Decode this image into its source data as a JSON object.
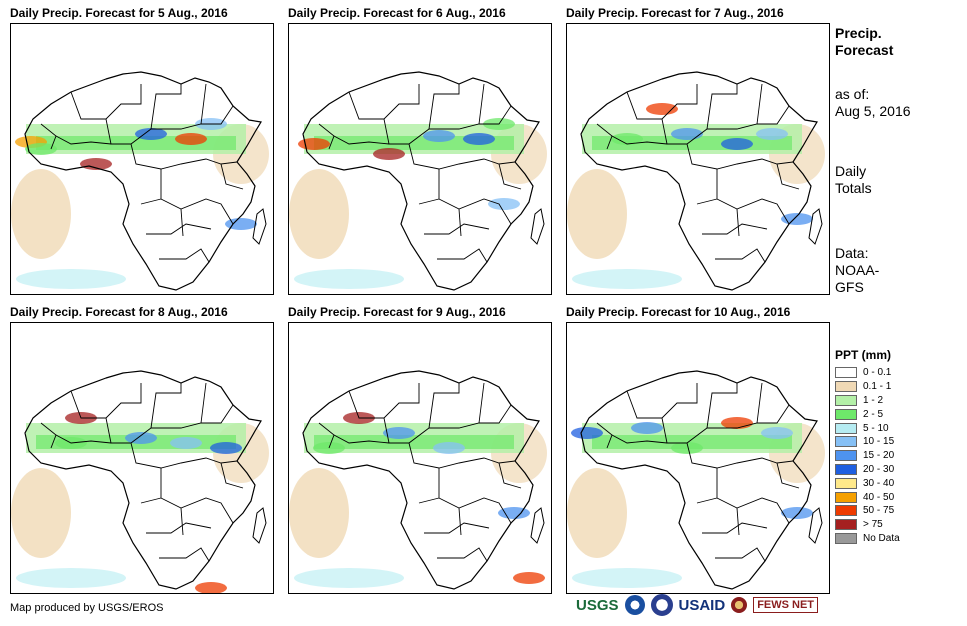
{
  "panels": [
    {
      "title": "Daily Precip. Forecast for 5 Aug., 2016"
    },
    {
      "title": "Daily Precip. Forecast for 6 Aug., 2016"
    },
    {
      "title": "Daily Precip. Forecast for 7 Aug., 2016"
    },
    {
      "title": "Daily Precip. Forecast for 8 Aug., 2016"
    },
    {
      "title": "Daily Precip. Forecast for 9 Aug., 2016"
    },
    {
      "title": "Daily Precip. Forecast for 10 Aug., 2016"
    }
  ],
  "info": {
    "heading_line1": "Precip.",
    "heading_line2": "Forecast",
    "asof_label": "as of:",
    "asof_date": "Aug 5, 2016",
    "totals_line1": "Daily",
    "totals_line2": "Totals",
    "data_line1": "Data:",
    "data_line2": "NOAA-",
    "data_line3": "GFS"
  },
  "legend": {
    "title": "PPT (mm)",
    "items": [
      {
        "label": "0 - 0.1",
        "color": "#ffffff"
      },
      {
        "label": "0.1 - 1",
        "color": "#f0d9b5"
      },
      {
        "label": "1 - 2",
        "color": "#b4f0a8"
      },
      {
        "label": "2 - 5",
        "color": "#6ee86a"
      },
      {
        "label": "5 - 10",
        "color": "#b6ecf2"
      },
      {
        "label": "10 - 15",
        "color": "#86c0f5"
      },
      {
        "label": "15 - 20",
        "color": "#4e93ef"
      },
      {
        "label": "20 - 30",
        "color": "#1f5fe0"
      },
      {
        "label": "30 - 40",
        "color": "#ffe98a"
      },
      {
        "label": "40 - 50",
        "color": "#f5a000"
      },
      {
        "label": "50 - 75",
        "color": "#ee3b00"
      },
      {
        "label": "> 75",
        "color": "#a52020"
      },
      {
        "label": "No Data",
        "color": "#999999"
      }
    ]
  },
  "credit": "Map produced by USGS/EROS",
  "logos": {
    "usgs": "USGS",
    "usaid": "USAID",
    "fews": "FEWS NET"
  },
  "icons": [
    "africa-map-icon",
    "noaa-logo-icon",
    "usaid-seal-icon",
    "fewsnet-globe-icon"
  ]
}
